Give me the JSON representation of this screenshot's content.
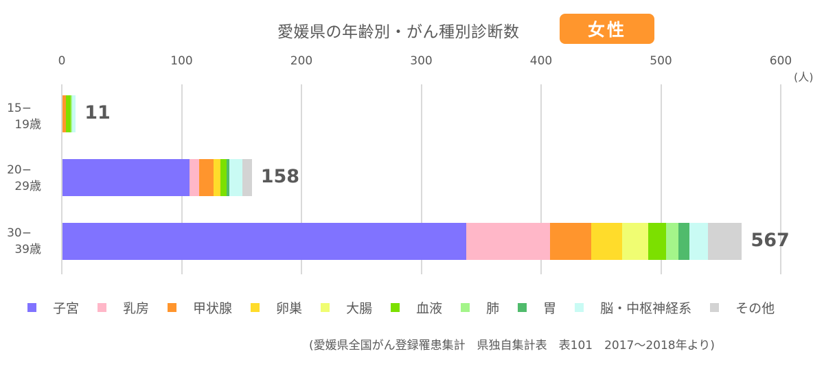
{
  "header": {
    "title": "愛媛県の年齢別・がん種別診断数",
    "badge": "女性"
  },
  "axis": {
    "ticks": [
      "0",
      "100",
      "200",
      "300",
      "400",
      "500",
      "600"
    ],
    "unit": "(人)"
  },
  "legend": [
    {
      "label": "子宮",
      "color": "#8073ff"
    },
    {
      "label": "乳房",
      "color": "#ffb7c8"
    },
    {
      "label": "甲状腺",
      "color": "#ff952d"
    },
    {
      "label": "卵巣",
      "color": "#ffdc2b"
    },
    {
      "label": "大腸",
      "color": "#f0fd72"
    },
    {
      "label": "血液",
      "color": "#7ce000"
    },
    {
      "label": "肺",
      "color": "#a4f58a"
    },
    {
      "label": "胃",
      "color": "#50bb6c"
    },
    {
      "label": "脳・中枢神経系",
      "color": "#c9fbf4"
    },
    {
      "label": "その他",
      "color": "#d3d3d3"
    }
  ],
  "rows": [
    {
      "label_line1": "15−",
      "label_line2": "19歳",
      "total": "11"
    },
    {
      "label_line1": "20−",
      "label_line2": "29歳",
      "total": "158"
    },
    {
      "label_line1": "30−",
      "label_line2": "39歳",
      "total": "567"
    }
  ],
  "source": "(愛媛県全国がん登録罹患集計　県独自集計表　表101　2017〜2018年より)",
  "chart_data": {
    "type": "bar",
    "orientation": "horizontal",
    "stacked": true,
    "title": "愛媛県の年齢別・がん種別診断数",
    "subtitle": "女性",
    "categories": [
      "15−19歳",
      "20−29歳",
      "30−39歳"
    ],
    "series": [
      {
        "name": "子宮",
        "color": "#8073ff",
        "values": [
          0,
          106,
          337
        ]
      },
      {
        "name": "乳房",
        "color": "#ffb7c8",
        "values": [
          0,
          8,
          70
        ]
      },
      {
        "name": "甲状腺",
        "color": "#ff952d",
        "values": [
          3,
          12,
          34
        ]
      },
      {
        "name": "卵巣",
        "color": "#ffdc2b",
        "values": [
          0,
          6,
          26
        ]
      },
      {
        "name": "大腸",
        "color": "#f0fd72",
        "values": [
          0,
          0,
          22
        ]
      },
      {
        "name": "血液",
        "color": "#7ce000",
        "values": [
          4,
          5,
          15
        ]
      },
      {
        "name": "肺",
        "color": "#a4f58a",
        "values": [
          1,
          0,
          10
        ]
      },
      {
        "name": "胃",
        "color": "#50bb6c",
        "values": [
          0,
          2,
          9
        ]
      },
      {
        "name": "脳・中枢神経系",
        "color": "#c9fbf4",
        "values": [
          3,
          11,
          16
        ]
      },
      {
        "name": "その他",
        "color": "#d3d3d3",
        "values": [
          0,
          8,
          28
        ]
      }
    ],
    "totals": [
      11,
      158,
      567
    ],
    "xlabel": "(人)",
    "ylabel": "",
    "xlim": [
      0,
      600
    ],
    "xticks": [
      0,
      100,
      200,
      300,
      400,
      500,
      600
    ],
    "grid": true,
    "legend_position": "bottom",
    "source": "(愛媛県全国がん登録罹患集計　県独自集計表　表101　2017〜2018年より)"
  }
}
